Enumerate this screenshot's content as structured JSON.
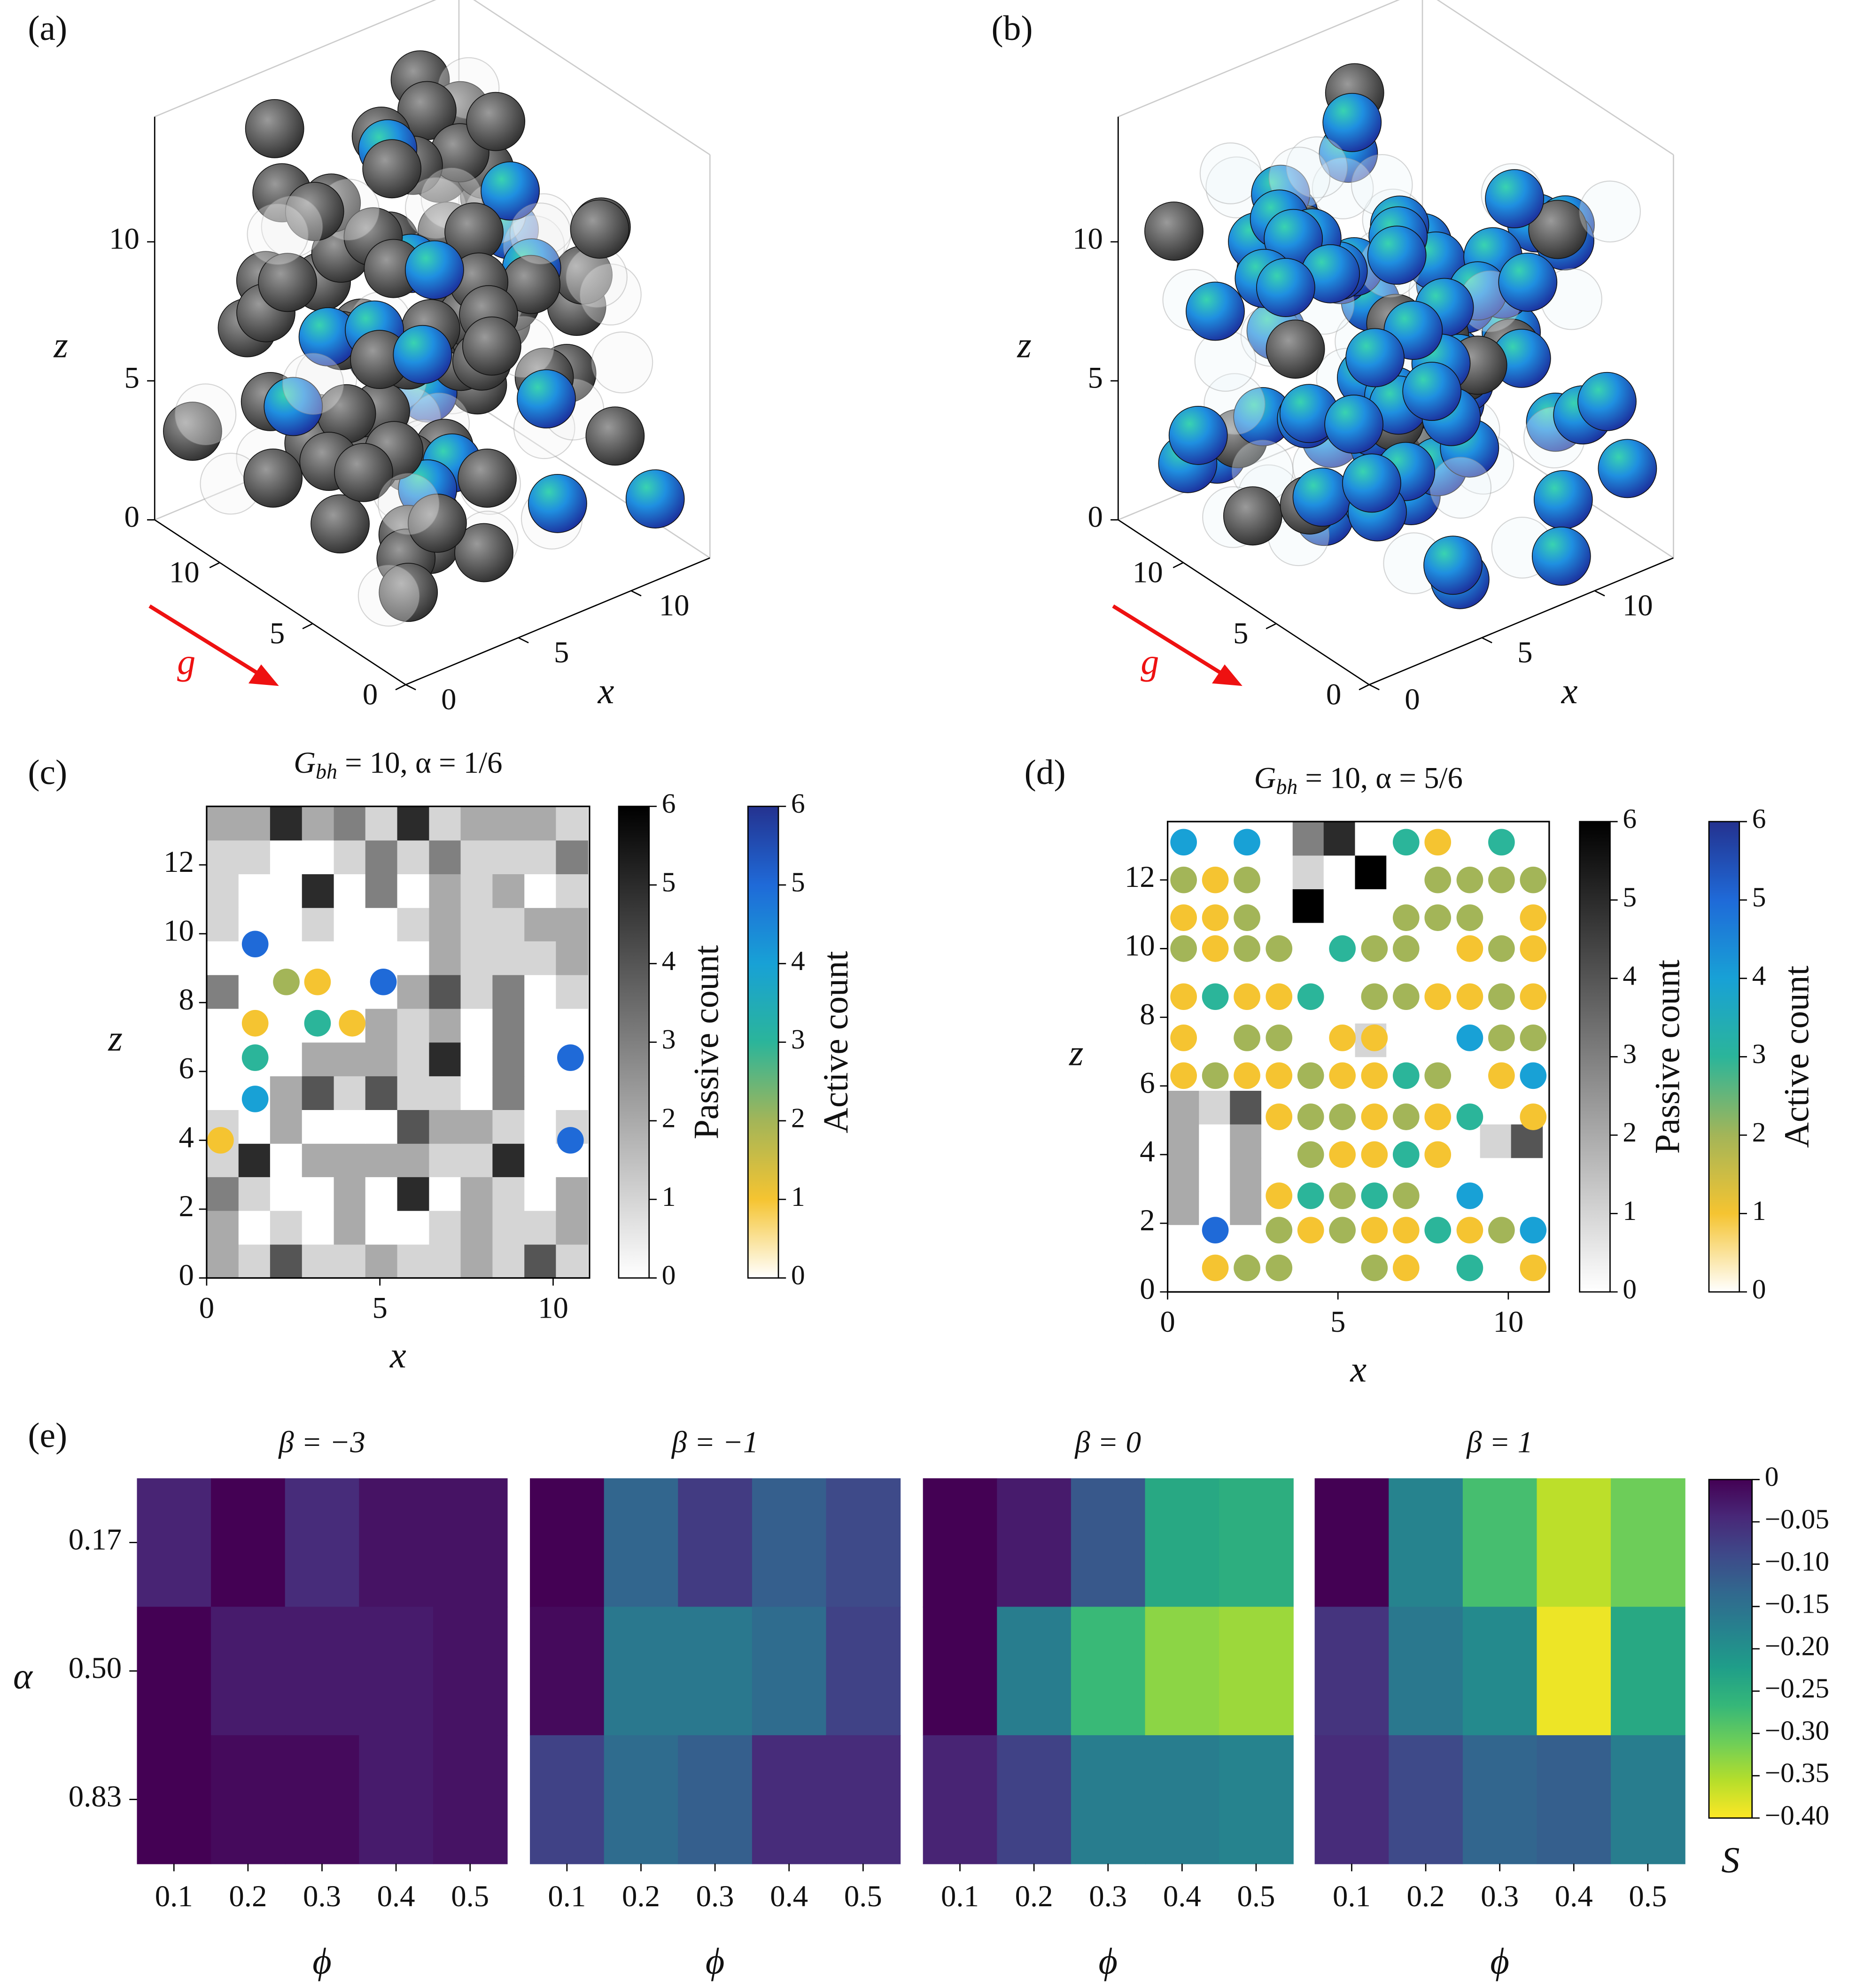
{
  "chart_data": [
    {
      "type": "render3d",
      "panel_label": "(a)",
      "xlabel": "x",
      "zlabel": "z",
      "arrow_label": "g",
      "arrow_color": "#ee1111",
      "xlim": [
        0,
        13.5
      ],
      "ylim": [
        0,
        13.5
      ],
      "zlim": [
        0,
        14.5
      ],
      "xticks": [
        0,
        5,
        10
      ],
      "yticks": [
        0,
        5,
        10
      ],
      "zticks": [
        0,
        5,
        10
      ],
      "passive_color": "#4a4a4a",
      "active_color": "#1f5fe0"
    },
    {
      "type": "render3d",
      "panel_label": "(b)",
      "xlabel": "x",
      "zlabel": "z",
      "arrow_label": "g",
      "arrow_color": "#ee1111",
      "xlim": [
        0,
        13.5
      ],
      "ylim": [
        0,
        13.5
      ],
      "zlim": [
        0,
        14.5
      ],
      "xticks": [
        0,
        5,
        10
      ],
      "yticks": [
        0,
        5,
        10
      ],
      "zticks": [
        0,
        5,
        10
      ],
      "passive_color": "#4a4a4a",
      "active_color": "#1f5fe0"
    },
    {
      "type": "heatmap-scatter",
      "panel_label": "(c)",
      "title": {
        "main": "G",
        "sub": "bh",
        "rest": " = 10, α = 1/6"
      },
      "xlabel": "x",
      "ylabel": "z",
      "xlim": [
        0,
        11.05
      ],
      "ylim": [
        0,
        13.7
      ],
      "xticks": [
        0,
        5,
        10
      ],
      "yticks": [
        0,
        2,
        4,
        6,
        8,
        10,
        12
      ],
      "xbins": [
        0,
        0.92,
        1.83,
        2.75,
        3.67,
        4.58,
        5.5,
        6.42,
        7.33,
        8.25,
        9.17,
        10.08,
        11
      ],
      "ybins": [
        0,
        0.98,
        1.96,
        2.94,
        3.91,
        4.89,
        5.87,
        6.85,
        7.83,
        8.81,
        9.79,
        10.76,
        11.74,
        12.72,
        13.7
      ],
      "counts": [
        [
          2,
          1,
          4,
          1,
          1,
          2,
          1,
          1,
          2,
          1,
          4,
          1
        ],
        [
          2,
          0,
          1,
          0,
          2,
          0,
          0,
          1,
          2,
          1,
          1,
          2
        ],
        [
          3,
          1,
          0,
          0,
          2,
          0,
          5,
          0,
          2,
          1,
          0,
          2
        ],
        [
          1,
          5,
          0,
          2,
          2,
          2,
          2,
          1,
          1,
          5,
          0,
          0
        ],
        [
          1,
          0,
          2,
          0,
          0,
          0,
          4,
          2,
          2,
          1,
          0,
          1
        ],
        [
          0,
          0,
          2,
          4,
          1,
          4,
          1,
          1,
          0,
          3,
          0,
          0
        ],
        [
          0,
          0,
          0,
          2,
          2,
          2,
          1,
          5,
          0,
          3,
          0,
          0
        ],
        [
          0,
          0,
          0,
          0,
          0,
          2,
          1,
          2,
          0,
          3,
          0,
          0
        ],
        [
          3,
          0,
          0,
          0,
          0,
          0,
          2,
          4,
          1,
          3,
          0,
          1
        ],
        [
          0,
          0,
          0,
          0,
          0,
          0,
          0,
          2,
          1,
          1,
          1,
          2
        ],
        [
          1,
          0,
          0,
          1,
          0,
          0,
          1,
          2,
          1,
          1,
          2,
          2
        ],
        [
          1,
          0,
          0,
          5,
          0,
          3,
          0,
          2,
          1,
          2,
          0,
          1
        ],
        [
          1,
          1,
          0,
          0,
          1,
          3,
          1,
          3,
          1,
          1,
          1,
          3
        ],
        [
          2,
          2,
          5,
          2,
          3,
          1,
          5,
          1,
          2,
          2,
          2,
          1
        ]
      ],
      "points": {
        "x": [
          1.4,
          2.3,
          3.2,
          5.1,
          1.4,
          3.2,
          4.2,
          1.4,
          1.4,
          0.4,
          10.5,
          10.5
        ],
        "y": [
          9.7,
          8.6,
          8.6,
          8.6,
          7.4,
          7.4,
          7.4,
          6.4,
          5.2,
          4.0,
          6.4,
          4.0
        ],
        "values": [
          5,
          2,
          1,
          5,
          1,
          3,
          1,
          3,
          4,
          1,
          5,
          5
        ]
      },
      "passive": {
        "label": "Passive count",
        "clim": [
          0,
          6
        ],
        "ticks": [
          0,
          1,
          2,
          3,
          4,
          5,
          6
        ],
        "cmap": [
          "#ffffff",
          "#000000"
        ]
      },
      "active": {
        "label": "Active count",
        "clim": [
          0,
          6
        ],
        "ticks": [
          0,
          1,
          2,
          3,
          4,
          5,
          6
        ],
        "cmap": [
          "#ffffff",
          "#f5c431",
          "#a3b558",
          "#2bb59a",
          "#18a1d6",
          "#1f6ad8",
          "#24328f"
        ]
      }
    },
    {
      "type": "heatmap-scatter",
      "panel_label": "(d)",
      "title": {
        "main": "G",
        "sub": "bh",
        "rest": " = 10, α = 5/6"
      },
      "xlabel": "x",
      "ylabel": "z",
      "xlim": [
        0,
        11.2
      ],
      "ylim": [
        0,
        13.7
      ],
      "xticks": [
        0,
        5,
        10
      ],
      "yticks": [
        0,
        2,
        4,
        6,
        8,
        10,
        12
      ],
      "xbins": [
        0,
        0.92,
        1.83,
        2.75,
        3.67,
        4.58,
        5.5,
        6.42,
        7.33,
        8.25,
        9.17,
        10.08,
        11
      ],
      "ybins": [
        0,
        0.98,
        1.96,
        2.94,
        3.91,
        4.89,
        5.87,
        6.85,
        7.83,
        8.81,
        9.79,
        10.76,
        11.74,
        12.72,
        13.7
      ],
      "counts": [
        [
          0,
          0,
          0,
          0,
          0,
          0,
          0,
          0,
          0,
          0,
          0,
          0
        ],
        [
          0,
          0,
          0,
          0,
          0,
          0,
          0,
          0,
          0,
          0,
          0,
          0
        ],
        [
          2,
          0,
          2,
          0,
          0,
          0,
          0,
          0,
          0,
          0,
          0,
          0
        ],
        [
          2,
          0,
          2,
          0,
          0,
          0,
          0,
          0,
          0,
          0,
          0,
          0
        ],
        [
          2,
          0,
          2,
          0,
          0,
          0,
          0,
          0,
          0,
          0,
          1,
          4
        ],
        [
          2,
          1,
          4,
          0,
          0,
          0,
          0,
          0,
          0,
          0,
          0,
          0
        ],
        [
          0,
          0,
          0,
          0,
          0,
          0,
          0,
          0,
          0,
          0,
          0,
          0
        ],
        [
          0,
          0,
          0,
          0,
          0,
          0,
          1,
          0,
          0,
          0,
          0,
          0
        ],
        [
          0,
          0,
          0,
          0,
          0,
          0,
          0,
          0,
          0,
          0,
          0,
          0
        ],
        [
          0,
          0,
          0,
          0,
          0,
          0,
          0,
          0,
          0,
          0,
          0,
          0
        ],
        [
          0,
          0,
          0,
          0,
          0,
          0,
          0,
          0,
          0,
          0,
          0,
          0
        ],
        [
          0,
          0,
          0,
          0,
          6,
          0,
          0,
          0,
          0,
          0,
          0,
          0
        ],
        [
          0,
          0,
          0,
          0,
          1,
          0,
          6,
          0,
          0,
          0,
          0,
          0
        ],
        [
          0,
          0,
          0,
          0,
          3,
          5,
          0,
          0,
          0,
          0,
          0,
          0
        ]
      ],
      "points": {
        "x": [
          0.47,
          2.33,
          7.0,
          7.93,
          9.8,
          0.47,
          1.4,
          2.33,
          7.93,
          8.87,
          9.8,
          10.73,
          0.47,
          1.4,
          2.33,
          7.0,
          7.93,
          8.87,
          10.73,
          0.47,
          1.4,
          2.33,
          3.27,
          5.13,
          6.07,
          7.0,
          8.87,
          9.8,
          10.73,
          0.47,
          1.4,
          2.33,
          3.27,
          4.2,
          6.07,
          7.0,
          7.93,
          8.87,
          9.8,
          10.73,
          0.47,
          2.33,
          3.27,
          5.13,
          6.07,
          8.87,
          9.8,
          10.73,
          0.47,
          1.4,
          2.33,
          3.27,
          4.2,
          5.13,
          6.07,
          7.0,
          7.93,
          9.8,
          10.73,
          3.27,
          4.2,
          5.13,
          6.07,
          7.0,
          7.93,
          8.87,
          10.73,
          4.2,
          5.13,
          6.07,
          7.0,
          7.93,
          3.27,
          4.2,
          5.13,
          6.07,
          7.0,
          8.87,
          1.4,
          3.27,
          4.2,
          5.13,
          6.07,
          7.0,
          7.93,
          8.87,
          9.8,
          10.73,
          1.4,
          2.33,
          3.27,
          6.07,
          7.0,
          8.87,
          10.73
        ],
        "y": [
          13.1,
          13.1,
          13.1,
          13.1,
          13.1,
          12.0,
          12.0,
          12.0,
          12.0,
          12.0,
          12.0,
          12.0,
          10.9,
          10.9,
          10.9,
          10.9,
          10.9,
          10.9,
          10.9,
          10.0,
          10.0,
          10.0,
          10.0,
          10.0,
          10.0,
          10.0,
          10.0,
          10.0,
          10.0,
          8.6,
          8.6,
          8.6,
          8.6,
          8.6,
          8.6,
          8.6,
          8.6,
          8.6,
          8.6,
          8.6,
          7.4,
          7.4,
          7.4,
          7.4,
          7.4,
          7.4,
          7.4,
          7.4,
          6.3,
          6.3,
          6.3,
          6.3,
          6.3,
          6.3,
          6.3,
          6.3,
          6.3,
          6.3,
          6.3,
          5.1,
          5.1,
          5.1,
          5.1,
          5.1,
          5.1,
          5.1,
          5.1,
          4.0,
          4.0,
          4.0,
          4.0,
          4.0,
          2.8,
          2.8,
          2.8,
          2.8,
          2.8,
          2.8,
          1.8,
          1.8,
          1.8,
          1.8,
          1.8,
          1.8,
          1.8,
          1.8,
          1.8,
          1.8,
          0.7,
          0.7,
          0.7,
          0.7,
          0.7,
          0.7,
          0.7
        ],
        "values": [
          4,
          4,
          3,
          1,
          3,
          2,
          1,
          2,
          2,
          2,
          2,
          2,
          1,
          1,
          2,
          2,
          2,
          2,
          1,
          2,
          1,
          2,
          2,
          3,
          2,
          2,
          1,
          2,
          1,
          1,
          3,
          1,
          1,
          3,
          2,
          2,
          1,
          1,
          2,
          1,
          1,
          2,
          2,
          1,
          1,
          4,
          2,
          2,
          1,
          2,
          1,
          1,
          2,
          1,
          1,
          3,
          2,
          1,
          4,
          1,
          2,
          2,
          1,
          2,
          1,
          3,
          1,
          2,
          1,
          1,
          3,
          1,
          1,
          3,
          2,
          3,
          2,
          4,
          5,
          2,
          1,
          2,
          1,
          1,
          3,
          1,
          2,
          4,
          1,
          2,
          2,
          2,
          1,
          3,
          1
        ]
      },
      "passive": {
        "label": "Passive count",
        "clim": [
          0,
          6
        ],
        "ticks": [
          0,
          1,
          2,
          3,
          4,
          5,
          6
        ],
        "cmap": [
          "#ffffff",
          "#000000"
        ]
      },
      "active": {
        "label": "Active count",
        "clim": [
          0,
          6
        ],
        "ticks": [
          0,
          1,
          2,
          3,
          4,
          5,
          6
        ],
        "cmap": [
          "#ffffff",
          "#f5c431",
          "#a3b558",
          "#2bb59a",
          "#18a1d6",
          "#1f6ad8",
          "#24328f"
        ]
      }
    },
    {
      "type": "heatmap-grid",
      "panel_label": "(e)",
      "xlabel": "ϕ",
      "ylabel": "α",
      "columns": [
        0.1,
        0.2,
        0.3,
        0.4,
        0.5
      ],
      "rows": [
        0.17,
        {
          "value": 0.5,
          "label": "0.50"
        },
        0.83
      ],
      "clabel": "S",
      "clim": [
        -0.4,
        0
      ],
      "cticks": [
        0,
        {
          "value": -0.05,
          "label": "−0.05"
        },
        {
          "value": -0.1,
          "label": "−0.10"
        },
        {
          "value": -0.15,
          "label": "−0.15"
        },
        {
          "value": -0.2,
          "label": "−0.20"
        },
        {
          "value": -0.25,
          "label": "−0.25"
        },
        {
          "value": -0.3,
          "label": "−0.30"
        },
        {
          "value": -0.35,
          "label": "−0.35"
        },
        {
          "value": -0.4,
          "label": "−0.40"
        }
      ],
      "cmap": [
        "#fde725",
        "#b5de2b",
        "#6ece58",
        "#35b779",
        "#1f9e89",
        "#26828e",
        "#31688e",
        "#3e4989",
        "#482878",
        "#440154"
      ],
      "panels": [
        {
          "title": "β = −3",
          "values": [
            [
              -0.04,
              0,
              -0.05,
              -0.02,
              -0.02
            ],
            [
              0,
              -0.03,
              -0.03,
              -0.03,
              -0.02
            ],
            [
              0,
              -0.01,
              -0.01,
              -0.03,
              -0.02
            ]
          ]
        },
        {
          "title": "β = −1",
          "values": [
            [
              0,
              -0.13,
              -0.07,
              -0.12,
              -0.09
            ],
            [
              -0.01,
              -0.16,
              -0.16,
              -0.14,
              -0.08
            ],
            [
              -0.08,
              -0.14,
              -0.12,
              -0.05,
              -0.05
            ]
          ]
        },
        {
          "title": "β = 0",
          "values": [
            [
              0,
              -0.03,
              -0.11,
              -0.24,
              -0.25
            ],
            [
              0,
              -0.17,
              -0.27,
              -0.33,
              -0.34
            ],
            [
              -0.04,
              -0.08,
              -0.17,
              -0.17,
              -0.18
            ]
          ]
        },
        {
          "title": "β = 1",
          "values": [
            [
              0,
              -0.18,
              -0.28,
              -0.36,
              -0.31
            ],
            [
              -0.06,
              -0.16,
              -0.19,
              -0.39,
              -0.24
            ],
            [
              -0.05,
              -0.09,
              -0.13,
              -0.12,
              -0.17
            ]
          ]
        }
      ]
    }
  ]
}
